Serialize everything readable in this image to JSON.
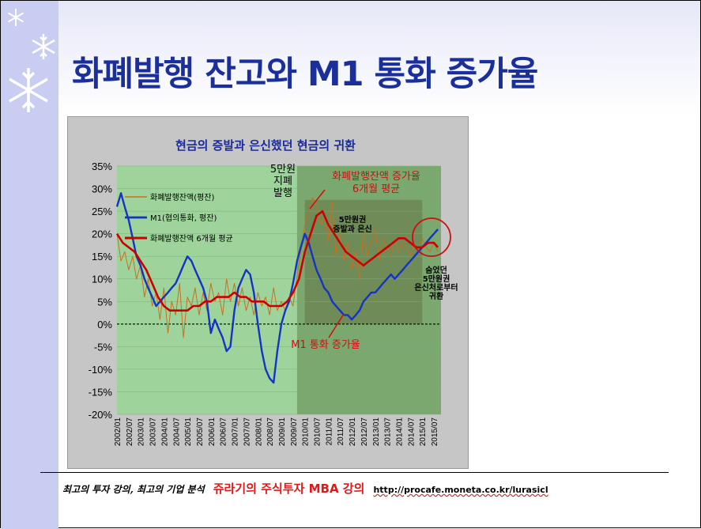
{
  "slide": {
    "title": "화폐발행 잔고와 M1 통화 증가율",
    "footer_left": "최고의 투자 강의, 최고의 기업 분석",
    "footer_mid": "쥬라기의 주식투자 MBA 강의",
    "footer_url": "http://procafe.moneta.co.kr/lurasicl"
  },
  "chart_data": {
    "type": "line",
    "title": "현금의 증발과 은신했던 현금의 귀환",
    "xlabel": "",
    "ylabel": "",
    "ylim": [
      -20,
      35
    ],
    "yticks": [
      "35%",
      "30%",
      "25%",
      "20%",
      "15%",
      "10%",
      "5%",
      "0%",
      "-5%",
      "-10%",
      "-15%",
      "-20%"
    ],
    "x_tick_labels": [
      "2002/01",
      "2002/07",
      "2003/01",
      "2003/07",
      "2004/01",
      "2004/07",
      "2005/01",
      "2005/07",
      "2006/01",
      "2006/07",
      "2007/01",
      "2007/07",
      "2008/01",
      "2008/07",
      "2009/01",
      "2009/07",
      "2010/01",
      "2010/07",
      "2011/01",
      "2011/07",
      "2012/01",
      "2012/07",
      "2013/01",
      "2013/07",
      "2014/01",
      "2014/07",
      "2015/01",
      "2015/07"
    ],
    "legend": [
      "화폐발행잔액(평잔)",
      "M1(협의통화, 평잔)",
      "화폐발행잔액 6개월 평균"
    ],
    "legend_position": "top-left",
    "series": [
      {
        "name": "화폐발행잔액(평잔)",
        "color": "#c8701e",
        "x": [
          2002.0,
          2002.17,
          2002.33,
          2002.5,
          2002.67,
          2002.83,
          2003.0,
          2003.17,
          2003.33,
          2003.5,
          2003.67,
          2003.83,
          2004.0,
          2004.17,
          2004.33,
          2004.5,
          2004.67,
          2004.83,
          2005.0,
          2005.17,
          2005.33,
          2005.5,
          2005.67,
          2005.83,
          2006.0,
          2006.17,
          2006.33,
          2006.5,
          2006.67,
          2006.83,
          2007.0,
          2007.17,
          2007.33,
          2007.5,
          2007.67,
          2007.83,
          2008.0,
          2008.17,
          2008.33,
          2008.5,
          2008.67,
          2008.83,
          2009.0,
          2009.17,
          2009.33,
          2009.5,
          2009.67,
          2009.83,
          2010.0,
          2010.17,
          2010.33,
          2010.5,
          2010.67,
          2010.83,
          2011.0,
          2011.17,
          2011.33,
          2011.5,
          2011.67,
          2011.83,
          2012.0,
          2012.17,
          2012.33,
          2012.5,
          2012.67,
          2012.83,
          2013.0,
          2013.17,
          2013.33,
          2013.5,
          2013.67,
          2013.83,
          2014.0,
          2014.17,
          2014.33,
          2014.5,
          2014.67,
          2014.83,
          2015.0,
          2015.17,
          2015.33,
          2015.5,
          2015.67
        ],
        "values": [
          20,
          14,
          16,
          12,
          15,
          10,
          13,
          6,
          10,
          4,
          7,
          1,
          8,
          -2,
          5,
          2,
          9,
          -3,
          6,
          4,
          8,
          2,
          7,
          3,
          9,
          5,
          7,
          2,
          10,
          5,
          9,
          4,
          8,
          3,
          6,
          2,
          7,
          4,
          6,
          2,
          8,
          3,
          5,
          3,
          6,
          4,
          11,
          16,
          22,
          25,
          28,
          26,
          22,
          24,
          18,
          27,
          15,
          20,
          14,
          18,
          12,
          16,
          10,
          20,
          15,
          18,
          21,
          14,
          19,
          17,
          15,
          19,
          16,
          18,
          17,
          15,
          18,
          16,
          19,
          17,
          16,
          18,
          16
        ]
      },
      {
        "name": "M1(협의통화, 평잔)",
        "color": "#1534c4",
        "x": [
          2002.0,
          2002.17,
          2002.33,
          2002.5,
          2002.67,
          2002.83,
          2003.0,
          2003.17,
          2003.33,
          2003.5,
          2003.67,
          2003.83,
          2004.0,
          2004.17,
          2004.33,
          2004.5,
          2004.67,
          2004.83,
          2005.0,
          2005.17,
          2005.33,
          2005.5,
          2005.67,
          2005.83,
          2006.0,
          2006.17,
          2006.33,
          2006.5,
          2006.67,
          2006.83,
          2007.0,
          2007.17,
          2007.33,
          2007.5,
          2007.67,
          2007.83,
          2008.0,
          2008.17,
          2008.33,
          2008.5,
          2008.67,
          2008.83,
          2009.0,
          2009.17,
          2009.33,
          2009.5,
          2009.67,
          2009.83,
          2010.0,
          2010.17,
          2010.33,
          2010.5,
          2010.67,
          2010.83,
          2011.0,
          2011.17,
          2011.33,
          2011.5,
          2011.67,
          2011.83,
          2012.0,
          2012.17,
          2012.33,
          2012.5,
          2012.67,
          2012.83,
          2013.0,
          2013.17,
          2013.33,
          2013.5,
          2013.67,
          2013.83,
          2014.0,
          2014.17,
          2014.33,
          2014.5,
          2014.67,
          2014.83,
          2015.0,
          2015.17,
          2015.33,
          2015.5,
          2015.67
        ],
        "values": [
          26,
          29,
          26,
          23,
          19,
          15,
          13,
          10,
          8,
          6,
          4,
          5,
          6,
          7,
          8,
          9,
          11,
          13,
          15,
          14,
          12,
          10,
          8,
          5,
          -2,
          1,
          -1,
          -3,
          -6,
          -5,
          3,
          8,
          10,
          12,
          11,
          7,
          0,
          -6,
          -10,
          -12,
          -13,
          -6,
          0,
          3,
          5,
          9,
          14,
          17,
          20,
          18,
          15,
          12,
          10,
          8,
          7,
          5,
          4,
          3,
          2,
          2,
          1,
          2,
          3,
          5,
          6,
          7,
          7,
          8,
          9,
          10,
          11,
          10,
          11,
          12,
          13,
          14,
          15,
          16,
          17,
          18,
          19,
          20,
          21
        ]
      },
      {
        "name": "화폐발행잔액 6개월 평균",
        "color": "#cc0000",
        "x": [
          2002.0,
          2002.25,
          2002.5,
          2002.75,
          2003.0,
          2003.25,
          2003.5,
          2003.75,
          2004.0,
          2004.25,
          2004.5,
          2004.75,
          2005.0,
          2005.25,
          2005.5,
          2005.75,
          2006.0,
          2006.25,
          2006.5,
          2006.75,
          2007.0,
          2007.25,
          2007.5,
          2007.75,
          2008.0,
          2008.25,
          2008.5,
          2008.75,
          2009.0,
          2009.25,
          2009.5,
          2009.75,
          2010.0,
          2010.25,
          2010.5,
          2010.75,
          2011.0,
          2011.25,
          2011.5,
          2011.75,
          2012.0,
          2012.25,
          2012.5,
          2012.75,
          2013.0,
          2013.25,
          2013.5,
          2013.75,
          2014.0,
          2014.25,
          2014.5,
          2014.75,
          2015.0,
          2015.25,
          2015.5,
          2015.67
        ],
        "values": [
          20,
          18,
          17,
          16,
          14,
          12,
          9,
          6,
          4,
          3,
          3,
          3,
          3,
          4,
          4,
          5,
          5,
          6,
          6,
          6,
          7,
          6,
          6,
          5,
          5,
          5,
          4,
          4,
          4,
          5,
          7,
          10,
          16,
          20,
          24,
          25,
          22,
          20,
          18,
          16,
          15,
          14,
          13,
          14,
          15,
          16,
          17,
          18,
          19,
          19,
          18,
          17,
          17,
          18,
          18,
          17
        ]
      }
    ],
    "annotations": [
      "5만원 지폐 발행",
      "화폐발행잔액 증가율 6개월 평균",
      "5만원권 증발과 은신",
      "숨었던 5만원권 은신처로부터 귀환",
      "M1 통화 증가율"
    ],
    "colors": {
      "plot_background": "#9ed49b",
      "shaded_region": "#7aa86e",
      "dark_box": "#6f8b57",
      "title_color": "#1b2a9a",
      "annotation_red": "#cc1010",
      "circle": "#cc1010"
    }
  }
}
